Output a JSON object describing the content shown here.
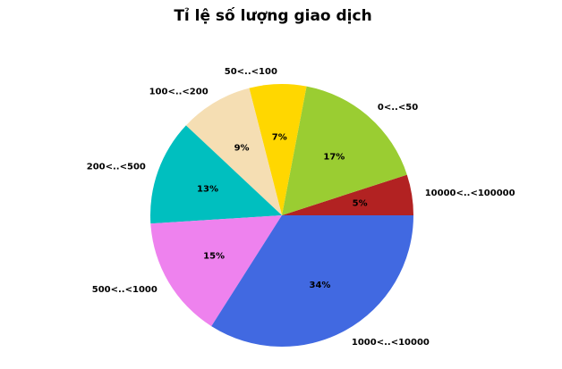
{
  "chart_data": {
    "type": "pie",
    "title": "Tỉ lệ số lượng giao dịch",
    "categories": [
      "10000<..<100000",
      "0<..<50",
      "50<..<100",
      "100<..<200",
      "200<..<500",
      "500<..<1000",
      "1000<..<10000"
    ],
    "values": [
      5,
      17,
      7,
      9,
      13,
      15,
      34
    ],
    "value_labels": [
      "5%",
      "17%",
      "7%",
      "9%",
      "13%",
      "15%",
      "34%"
    ],
    "colors": [
      "#b22222",
      "#9acd32",
      "#ffd700",
      "#f5deb3",
      "#00bfbf",
      "#ee82ee",
      "#4169e1"
    ],
    "start": "3 o'clock",
    "direction": "counterclockwise",
    "legend": "none"
  }
}
